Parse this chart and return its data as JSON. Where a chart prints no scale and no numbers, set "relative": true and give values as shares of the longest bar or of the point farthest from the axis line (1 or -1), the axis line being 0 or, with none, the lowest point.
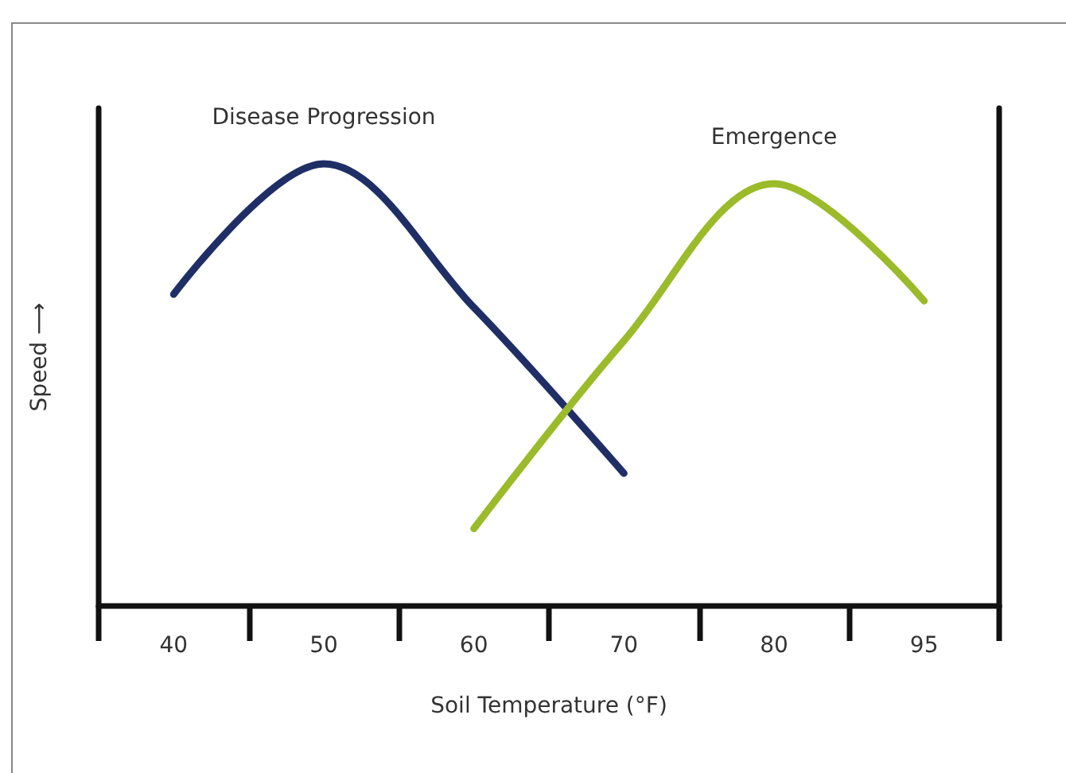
{
  "chart_data": {
    "type": "line",
    "relative": true,
    "xlabel": "Soil Temperature (°F)",
    "ylabel": "Speed ⟶",
    "categories": [
      "40",
      "50",
      "60",
      "70",
      "80",
      "95"
    ],
    "series": [
      {
        "name": "Disease Progression",
        "color": "#1f2f66",
        "values": [
          0.705,
          1,
          0.675,
          0.3,
          null,
          null
        ]
      },
      {
        "name": "Emergence",
        "color": "#9bbb2a",
        "values": [
          null,
          null,
          0.175,
          0.6,
          0.955,
          0.69
        ]
      }
    ]
  }
}
